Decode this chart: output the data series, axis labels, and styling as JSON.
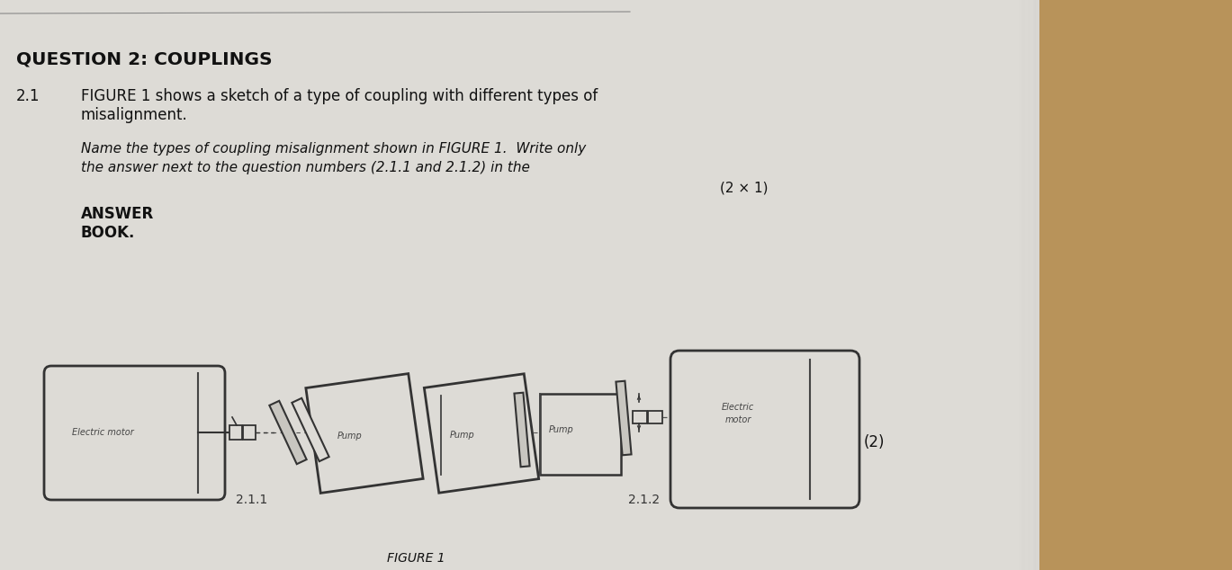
{
  "bg_paper": "#dcdad5",
  "bg_wood": "#b8935a",
  "text_color": "#111111",
  "draw_color": "#444444",
  "title": "QUESTION 2: COUPLINGS",
  "section": "2.1",
  "para1": "FIGURE 1 shows a sketch of a type of coupling with different types of",
  "para1b": "misalignment.",
  "para2a": "Name the types of coupling misalignment shown in FIGURE 1.  Write only",
  "para2b": "the answer next to the question numbers (2.1.1 and 2.1.2) in the",
  "marks": "(2 × 1)",
  "answer_line1": "ANSWER",
  "answer_line2": "BOOK.",
  "marks2": "(2)",
  "figure_label": "FIGURE 1",
  "label_211": "2.1.1",
  "label_212": "2.1.2",
  "label_emotor1": "Electric motor",
  "label_pump1": "Pump",
  "label_pump2": "Pump",
  "label_emotor2": "Electric\nmotor"
}
